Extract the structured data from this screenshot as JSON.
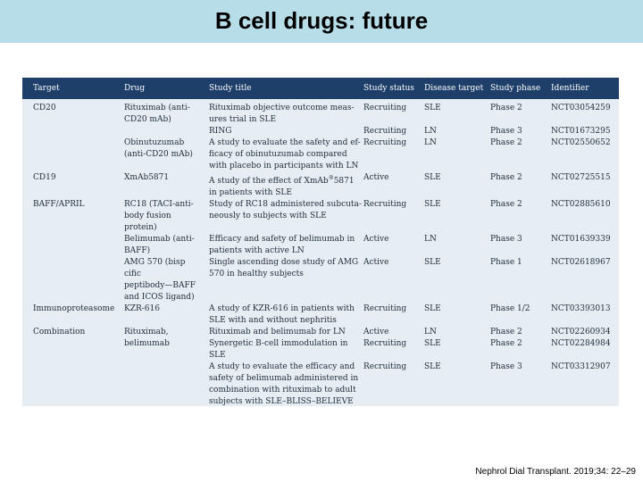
{
  "title": "B cell drugs: future",
  "citation": "Nephrol Dial Transplant. 2019;34: 22–29",
  "table": {
    "headers": [
      "Target",
      "Drug",
      "Study title",
      "Study status",
      "Disease target",
      "Study phase",
      "Identifier"
    ],
    "rows": [
      {
        "target": [
          "CD20"
        ],
        "drug": [
          "Rituximab (anti-",
          "CD20 mAb)",
          "",
          "Obinutuzumab",
          "(anti-CD20 mAb)"
        ],
        "title": [
          "Rituximab objective outcome meas-",
          "ures trial in SLE",
          "RING",
          "A study to evaluate the safety and ef-",
          "ficacy of obinutuzumab compared",
          "with placebo in participants with LN"
        ],
        "status": [
          "Recruiting",
          "",
          "Recruiting",
          "Recruiting"
        ],
        "disease": [
          "SLE",
          "",
          "LN",
          "LN"
        ],
        "phase": [
          "Phase 2",
          "",
          "Phase 3",
          "Phase 2"
        ],
        "identifier": [
          "NCT03054259",
          "",
          "NCT01673295",
          "NCT02550652"
        ]
      },
      {
        "target": [
          "CD19"
        ],
        "drug": [
          "XmAb5871"
        ],
        "title_pre": "A study of the effect of XmAb",
        "title_sup": "®",
        "title_post": "5871",
        "title": [
          "in patients with SLE"
        ],
        "status": [
          "Active"
        ],
        "disease": [
          "SLE"
        ],
        "phase": [
          "Phase 2"
        ],
        "identifier": [
          "NCT02725515"
        ]
      },
      {
        "target": [
          "BAFF/APRIL"
        ],
        "drug": [
          "RC18 (TACI-anti-",
          "body fusion",
          "protein)",
          "Belimumab (anti-",
          "BAFF)",
          "AMG 570 (bisp",
          "cific",
          "peptibody—BAFF",
          "and ICOS ligand)"
        ],
        "title": [
          "Study of RC18 administered subcuta-",
          "neously to subjects with SLE",
          "",
          "Efficacy and safety of belimumab in",
          "patients with active LN",
          "Single ascending dose study of AMG",
          "570 in healthy subjects"
        ],
        "status": [
          "Recruiting",
          "",
          "",
          "Active",
          "",
          "Active"
        ],
        "disease": [
          "SLE",
          "",
          "",
          "LN",
          "",
          "SLE"
        ],
        "phase": [
          "Phase 2",
          "",
          "",
          "Phase 3",
          "",
          "Phase 1"
        ],
        "identifier": [
          "NCT02885610",
          "",
          "",
          "NCT01639339",
          "",
          "NCT02618967"
        ]
      },
      {
        "target": [
          "Immunoproteasome"
        ],
        "drug": [
          "KZR-616"
        ],
        "title": [
          "A study of KZR-616 in patients with",
          "SLE with and without nephritis"
        ],
        "status": [
          "Recruiting"
        ],
        "disease": [
          "SLE"
        ],
        "phase": [
          "Phase 1/2"
        ],
        "identifier": [
          "NCT03393013"
        ]
      },
      {
        "target": [
          "Combination"
        ],
        "drug": [
          "Rituximab,",
          "belimumab"
        ],
        "title": [
          "Rituximab and belimumab for LN",
          "Synergetic B-cell immodulation in",
          "SLE",
          "A study to evaluate the efficacy and",
          "safety of belimumab administered in",
          "combination with rituximab to adult",
          "subjects with SLE–BLISS–BELIEVE"
        ],
        "status": [
          "Active",
          "Recruiting",
          "",
          "Recruiting"
        ],
        "disease": [
          "LN",
          "SLE",
          "",
          "SLE"
        ],
        "phase": [
          "Phase 2",
          "Phase 2",
          "",
          "Phase 3"
        ],
        "identifier": [
          "NCT02260934",
          "NCT02284984",
          "",
          "NCT03312907"
        ]
      }
    ]
  }
}
